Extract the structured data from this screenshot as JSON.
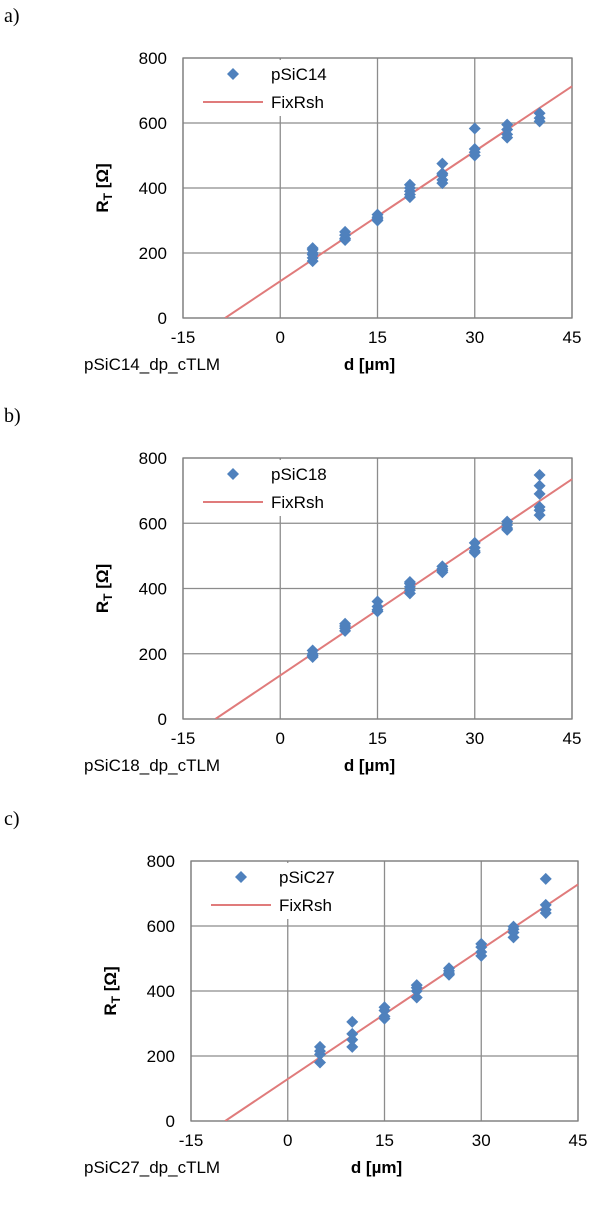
{
  "chart_data": [
    {
      "type": "scatter",
      "panel": "a)",
      "caption": "pSiC14_dp_cTLM",
      "xlabel": "d [µm]",
      "ylabel": "R",
      "ylabel_sub": "T",
      "ylabel_unit": " [Ω]",
      "xlim": [
        -15,
        45
      ],
      "ylim": [
        0,
        800
      ],
      "xticks": [
        -15,
        0,
        15,
        30,
        45
      ],
      "yticks": [
        0,
        200,
        400,
        600,
        800
      ],
      "grid": true,
      "legend": "top-left",
      "series": [
        {
          "name": "pSiC14",
          "kind": "points",
          "color": "#4f81bd",
          "x": [
            5,
            5,
            5,
            5,
            5,
            5,
            10,
            10,
            10,
            10,
            15,
            15,
            15,
            15,
            20,
            20,
            20,
            20,
            20,
            25,
            25,
            25,
            25,
            25,
            30,
            30,
            30,
            30,
            35,
            35,
            35,
            35,
            40,
            40,
            40
          ],
          "y": [
            175,
            185,
            195,
            200,
            210,
            215,
            240,
            245,
            255,
            265,
            300,
            305,
            310,
            318,
            372,
            380,
            390,
            400,
            410,
            415,
            425,
            440,
            445,
            475,
            500,
            510,
            520,
            583,
            555,
            565,
            580,
            595,
            605,
            615,
            630
          ]
        },
        {
          "name": "FixRsh",
          "kind": "line",
          "color": "#e07b7b",
          "x": [
            -8.5,
            45
          ],
          "y": [
            0,
            713
          ]
        }
      ]
    },
    {
      "type": "scatter",
      "panel": "b)",
      "caption": "pSiC18_dp_cTLM",
      "xlabel": "d [µm]",
      "ylabel": "R",
      "ylabel_sub": "T",
      "ylabel_unit": " [Ω]",
      "xlim": [
        -15,
        45
      ],
      "ylim": [
        0,
        800
      ],
      "xticks": [
        -15,
        0,
        15,
        30,
        45
      ],
      "yticks": [
        0,
        200,
        400,
        600,
        800
      ],
      "grid": true,
      "legend": "top-left",
      "series": [
        {
          "name": "pSiC18",
          "kind": "points",
          "color": "#4f81bd",
          "x": [
            5,
            5,
            5,
            5,
            10,
            10,
            10,
            10,
            15,
            15,
            15,
            15,
            20,
            20,
            20,
            20,
            20,
            25,
            25,
            25,
            25,
            30,
            30,
            30,
            30,
            35,
            35,
            35,
            35,
            40,
            40,
            40,
            40,
            40,
            40
          ],
          "y": [
            190,
            195,
            200,
            210,
            270,
            278,
            285,
            292,
            330,
            335,
            345,
            360,
            385,
            395,
            405,
            415,
            420,
            450,
            455,
            460,
            468,
            510,
            515,
            525,
            540,
            580,
            585,
            595,
            605,
            625,
            640,
            650,
            690,
            715,
            748
          ]
        },
        {
          "name": "FixRsh",
          "kind": "line",
          "color": "#e07b7b",
          "x": [
            -10,
            45
          ],
          "y": [
            0,
            735
          ]
        }
      ]
    },
    {
      "type": "scatter",
      "panel": "c)",
      "caption": "pSiC27_dp_cTLM",
      "xlabel": "d [µm]",
      "ylabel": "R",
      "ylabel_sub": "T",
      "ylabel_unit": " [Ω]",
      "xlim": [
        -15,
        45
      ],
      "ylim": [
        0,
        800
      ],
      "xticks": [
        -15,
        0,
        15,
        30,
        45
      ],
      "yticks": [
        0,
        200,
        400,
        600,
        800
      ],
      "grid": true,
      "legend": "top-left",
      "series": [
        {
          "name": "pSiC27",
          "kind": "points",
          "color": "#4f81bd",
          "x": [
            5,
            5,
            5,
            5,
            10,
            10,
            10,
            10,
            15,
            15,
            15,
            15,
            20,
            20,
            20,
            20,
            25,
            25,
            25,
            25,
            30,
            30,
            30,
            30,
            35,
            35,
            35,
            35,
            40,
            40,
            40,
            40
          ],
          "y": [
            180,
            205,
            215,
            228,
            228,
            250,
            268,
            305,
            315,
            322,
            340,
            350,
            380,
            400,
            410,
            418,
            450,
            455,
            462,
            470,
            508,
            520,
            535,
            545,
            565,
            580,
            590,
            598,
            640,
            650,
            665,
            745
          ]
        },
        {
          "name": "FixRsh",
          "kind": "line",
          "color": "#e07b7b",
          "x": [
            -9.7,
            45
          ],
          "y": [
            0,
            728
          ]
        }
      ]
    }
  ]
}
